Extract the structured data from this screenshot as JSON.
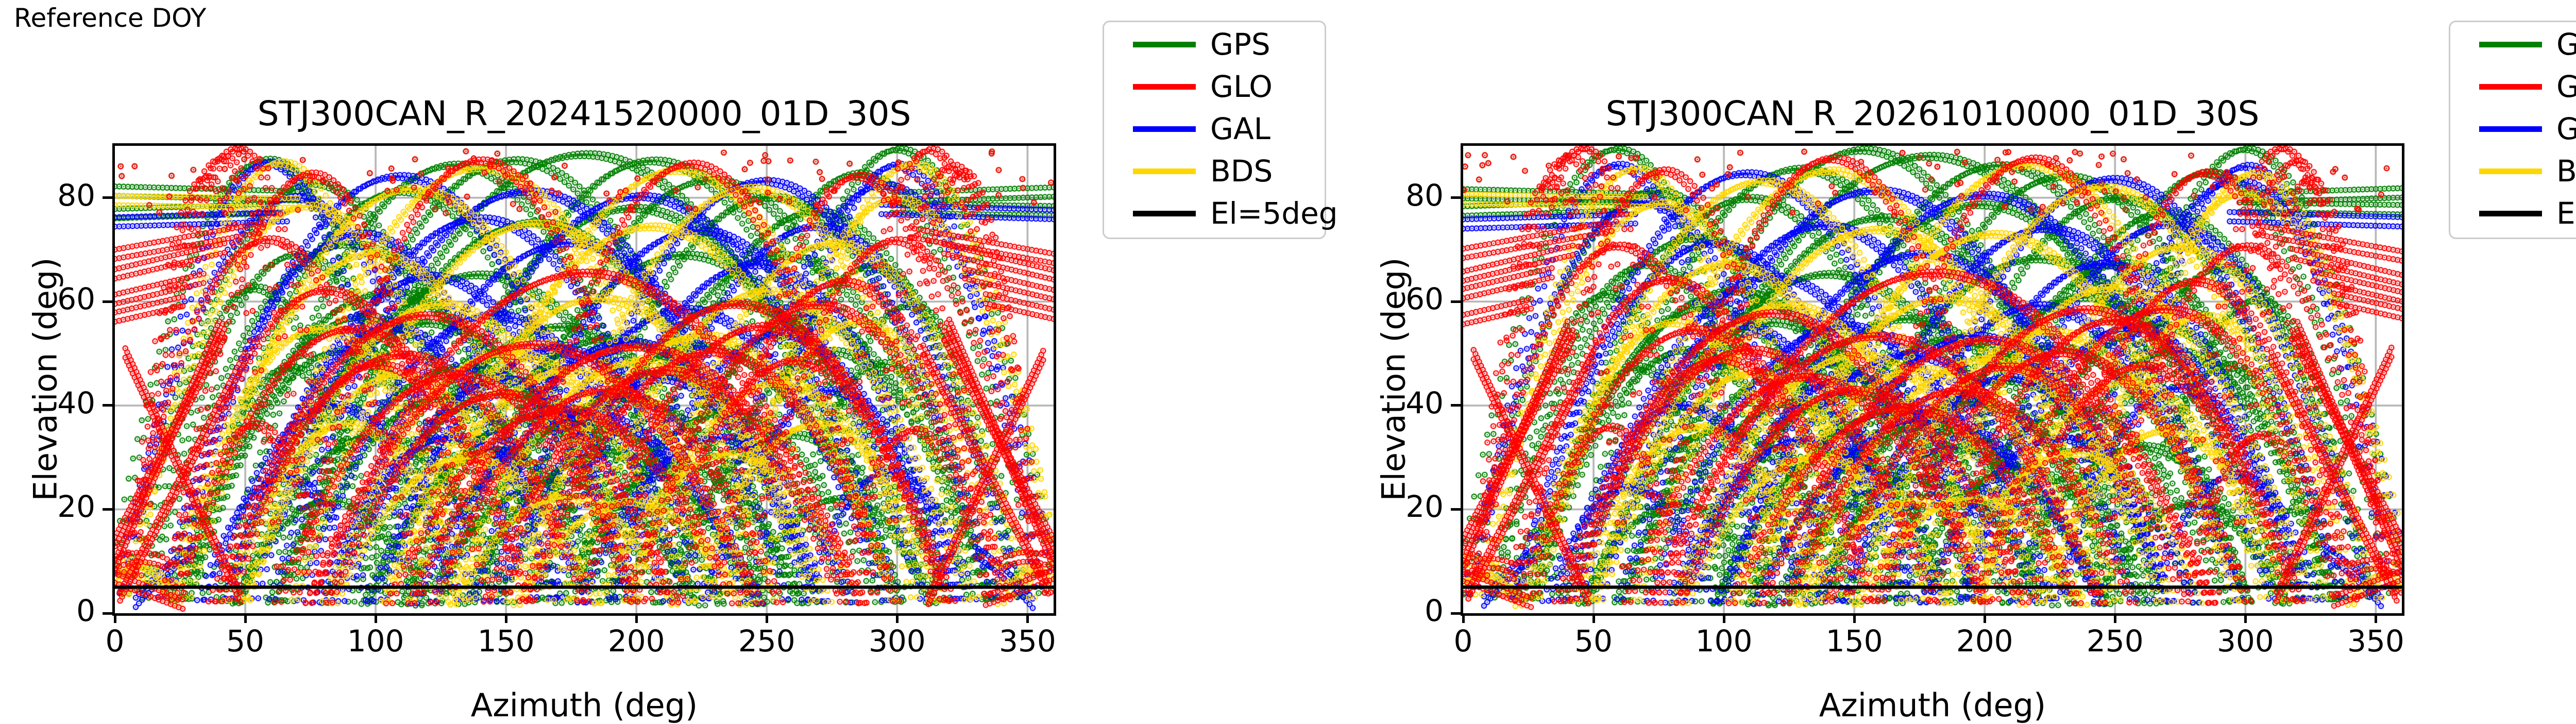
{
  "page": {
    "reference_label": "Reference DOY"
  },
  "chart_data": {
    "type": "scatter",
    "xlabel": "Azimuth (deg)",
    "ylabel": "Elevation (deg)",
    "xlim": [
      0,
      360
    ],
    "ylim": [
      0,
      90
    ],
    "xticks": [
      0,
      50,
      100,
      150,
      200,
      250,
      300,
      350
    ],
    "yticks": [
      0,
      20,
      40,
      60,
      80
    ],
    "grid": true,
    "grid_color": "#b3b3b3",
    "background_color": "#ffffff",
    "legend_position": "outside-top-right",
    "legend_entries": [
      {
        "label": "GPS",
        "color": "#008000"
      },
      {
        "label": "GLO",
        "color": "#ff0000"
      },
      {
        "label": "GAL",
        "color": "#0000ff"
      },
      {
        "label": "BDS",
        "color": "#ffd700"
      },
      {
        "label": "El=5deg",
        "color": "#000000"
      }
    ],
    "threshold_line": {
      "label": "El=5deg",
      "elevation": 5,
      "color": "#000000"
    },
    "panels": [
      {
        "title": "STJ300CAN_R_20241520000_01D_30S",
        "seed": 7
      },
      {
        "title": "STJ300CAN_R_20261010000_01D_30S",
        "seed": 131
      }
    ],
    "marker": {
      "shape": "open-circle",
      "radius_px": 4.6
    },
    "scatter_band": {
      "el_min": 77,
      "el_max": 89,
      "points_per_constellation": 115
    },
    "tracks": {
      "GPS": {
        "arcs": [
          [
            60,
            88,
            62
          ],
          [
            75,
            82,
            74
          ],
          [
            90,
            71,
            80
          ],
          [
            105,
            62,
            84
          ],
          [
            120,
            55,
            80
          ],
          [
            135,
            48,
            76
          ],
          [
            150,
            42,
            72
          ],
          [
            165,
            38,
            70
          ],
          [
            180,
            36,
            70
          ],
          [
            195,
            40,
            72
          ],
          [
            210,
            45,
            74
          ],
          [
            225,
            52,
            78
          ],
          [
            240,
            60,
            80
          ],
          [
            255,
            68,
            82
          ],
          [
            270,
            76,
            80
          ],
          [
            285,
            84,
            72
          ],
          [
            300,
            88,
            62
          ],
          [
            180,
            87,
            118
          ],
          [
            160,
            76,
            100
          ],
          [
            200,
            78,
            104
          ],
          [
            140,
            66,
            94
          ],
          [
            220,
            68,
            96
          ],
          [
            100,
            34,
            54
          ],
          [
            260,
            33,
            54
          ],
          [
            82,
            21,
            38
          ],
          [
            278,
            22,
            38
          ],
          [
            172,
            26,
            56
          ],
          [
            188,
            31,
            58
          ],
          [
            55,
            62,
            46
          ],
          [
            305,
            60,
            46
          ],
          [
            66,
            46,
            40
          ],
          [
            294,
            47,
            42
          ],
          [
            130,
            85,
            92
          ],
          [
            230,
            83,
            92
          ],
          [
            110,
            80,
            86
          ],
          [
            250,
            79,
            88
          ],
          [
            145,
            30,
            48
          ],
          [
            215,
            28,
            48
          ],
          [
            170,
            56,
            82
          ],
          [
            190,
            53,
            82
          ],
          [
            86,
            50,
            60
          ],
          [
            274,
            49,
            62
          ],
          [
            70,
            68,
            60
          ],
          [
            290,
            66,
            58
          ],
          [
            125,
            41,
            60
          ],
          [
            235,
            39,
            60
          ],
          [
            155,
            88,
            96
          ],
          [
            205,
            86,
            96
          ],
          [
            95,
            58,
            70
          ],
          [
            265,
            56,
            70
          ],
          [
            30,
            17,
            12
          ],
          [
            316,
            19,
            13
          ],
          [
            27,
            11,
            9
          ],
          [
            320,
            10,
            9
          ]
        ],
        "lines": [
          [
            0,
            77.5,
            62,
            78.5,
            0
          ],
          [
            0,
            80.5,
            75,
            79.5,
            0
          ],
          [
            298,
            78,
            360,
            77.5,
            0
          ],
          [
            300,
            80,
            360,
            81,
            0
          ]
        ]
      },
      "GLO": {
        "arcs": [
          [
            40,
            87,
            36
          ],
          [
            34,
            84,
            30
          ],
          [
            46,
            90,
            40
          ],
          [
            320,
            87,
            36
          ],
          [
            326,
            84,
            30
          ],
          [
            314,
            90,
            40
          ],
          [
            90,
            55,
            70
          ],
          [
            110,
            50,
            72
          ],
          [
            130,
            45,
            70
          ],
          [
            150,
            42,
            68
          ],
          [
            170,
            40,
            68
          ],
          [
            190,
            43,
            68
          ],
          [
            210,
            46,
            70
          ],
          [
            230,
            50,
            72
          ],
          [
            250,
            55,
            72
          ],
          [
            270,
            59,
            74
          ],
          [
            60,
            71,
            60
          ],
          [
            300,
            71,
            60
          ],
          [
            80,
            63,
            64
          ],
          [
            280,
            63,
            64
          ],
          [
            100,
            48,
            58
          ],
          [
            260,
            48,
            58
          ],
          [
            120,
            58,
            84
          ],
          [
            240,
            58,
            84
          ],
          [
            160,
            52,
            88
          ],
          [
            200,
            52,
            88
          ],
          [
            140,
            87,
            72
          ],
          [
            220,
            87,
            72
          ],
          [
            180,
            66,
            108
          ],
          [
            76,
            85,
            56
          ],
          [
            284,
            85,
            56
          ],
          [
            55,
            35,
            30
          ],
          [
            305,
            35,
            30
          ]
        ],
        "lines": [
          [
            0,
            69,
            55,
            74,
            0
          ],
          [
            0,
            65,
            42,
            70,
            0
          ],
          [
            0,
            61,
            34,
            65,
            0
          ],
          [
            0,
            57,
            26,
            60,
            0
          ],
          [
            360,
            69,
            305,
            74,
            0
          ],
          [
            360,
            65,
            318,
            70,
            0
          ],
          [
            360,
            61,
            326,
            65,
            0
          ],
          [
            360,
            57,
            334,
            60,
            0
          ],
          [
            2,
            4,
            50,
            50,
            0
          ],
          [
            4,
            50,
            48,
            3,
            0
          ],
          [
            0,
            14,
            42,
            54,
            0
          ],
          [
            40,
            56,
            0,
            10,
            0
          ],
          [
            358,
            4,
            310,
            50,
            0
          ],
          [
            356,
            50,
            312,
            3,
            0
          ],
          [
            360,
            14,
            318,
            54,
            0
          ],
          [
            320,
            56,
            360,
            10,
            0
          ],
          [
            0,
            7,
            26,
            2,
            0
          ],
          [
            334,
            2,
            360,
            7,
            0
          ],
          [
            0,
            9,
            20,
            9,
            0.5
          ],
          [
            340,
            9,
            360,
            9,
            0.5
          ]
        ]
      },
      "GAL": {
        "arcs": [
          [
            70,
            80,
            70
          ],
          [
            95,
            72,
            78
          ],
          [
            120,
            64,
            80
          ],
          [
            145,
            56,
            76
          ],
          [
            170,
            50,
            74
          ],
          [
            195,
            52,
            76
          ],
          [
            220,
            58,
            78
          ],
          [
            245,
            66,
            80
          ],
          [
            270,
            74,
            80
          ],
          [
            295,
            82,
            68
          ],
          [
            60,
            87,
            56
          ],
          [
            300,
            86,
            56
          ],
          [
            110,
            85,
            90
          ],
          [
            250,
            84,
            90
          ],
          [
            160,
            80,
            100
          ],
          [
            200,
            81,
            100
          ],
          [
            85,
            40,
            50
          ],
          [
            275,
            42,
            50
          ],
          [
            130,
            34,
            54
          ],
          [
            230,
            33,
            54
          ],
          [
            180,
            38,
            68
          ],
          [
            105,
            55,
            64
          ],
          [
            255,
            54,
            66
          ],
          [
            140,
            75,
            88
          ],
          [
            225,
            74,
            88
          ],
          [
            64,
            25,
            34
          ],
          [
            296,
            27,
            34
          ],
          [
            175,
            70,
            94
          ],
          [
            150,
            45,
            64
          ],
          [
            210,
            44,
            64
          ]
        ],
        "lines": [
          [
            0,
            75.5,
            66,
            76.5,
            0
          ],
          [
            294,
            77,
            360,
            76,
            0
          ],
          [
            8,
            2,
            30,
            12,
            0.3
          ],
          [
            330,
            12,
            352,
            2,
            0.3
          ]
        ]
      },
      "BDS": {
        "arcs": [
          [
            75,
            78,
            72
          ],
          [
            100,
            68,
            78
          ],
          [
            125,
            58,
            76
          ],
          [
            150,
            50,
            72
          ],
          [
            175,
            46,
            72
          ],
          [
            200,
            48,
            74
          ],
          [
            225,
            54,
            76
          ],
          [
            250,
            62,
            78
          ],
          [
            275,
            70,
            78
          ],
          [
            300,
            80,
            66
          ],
          [
            65,
            86,
            58
          ],
          [
            305,
            85,
            58
          ],
          [
            115,
            82,
            88
          ],
          [
            245,
            81,
            88
          ],
          [
            160,
            74,
            94
          ],
          [
            205,
            73,
            94
          ],
          [
            90,
            35,
            48
          ],
          [
            270,
            36,
            50
          ],
          [
            135,
            29,
            52
          ],
          [
            235,
            30,
            52
          ],
          [
            185,
            60,
            84
          ],
          [
            140,
            86,
            92
          ],
          [
            215,
            85,
            92
          ],
          [
            110,
            45,
            60
          ],
          [
            255,
            44,
            60
          ],
          [
            172,
            21,
            44
          ],
          [
            196,
            22,
            45
          ],
          [
            80,
            55,
            60
          ],
          [
            285,
            56,
            60
          ],
          [
            8,
            8,
            16
          ],
          [
            352,
            7,
            14
          ]
        ],
        "lines": [
          [
            0,
            10,
            20,
            5,
            0.3
          ],
          [
            0,
            79.5,
            70,
            79,
            0
          ]
        ]
      }
    }
  }
}
